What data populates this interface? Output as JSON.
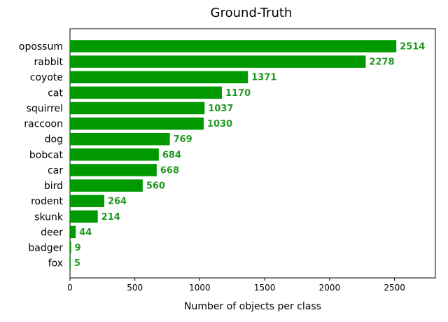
{
  "chart_data": {
    "type": "bar",
    "orientation": "horizontal",
    "title": "Ground-Truth",
    "xlabel": "Number of objects per class",
    "ylabel": "",
    "categories": [
      "opossum",
      "rabbit",
      "coyote",
      "cat",
      "squirrel",
      "raccoon",
      "dog",
      "bobcat",
      "car",
      "bird",
      "rodent",
      "skunk",
      "deer",
      "badger",
      "fox"
    ],
    "values": [
      2514,
      2278,
      1371,
      1170,
      1037,
      1030,
      769,
      684,
      668,
      560,
      264,
      214,
      44,
      9,
      5
    ],
    "xlim": [
      0,
      2815
    ],
    "xticks": [
      0,
      500,
      1000,
      1500,
      2000,
      2500
    ],
    "grid": false,
    "legend": "none",
    "bar_color": "#009900",
    "label_color": "#229922"
  }
}
